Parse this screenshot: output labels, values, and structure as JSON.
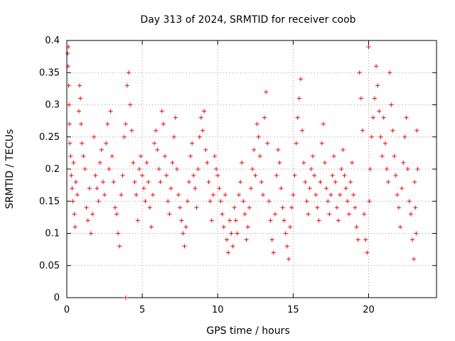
{
  "chart_data": {
    "type": "scatter",
    "title": "Day 313 of 2024, SRMTID for receiver coob",
    "xlabel": "GPS time / hours",
    "ylabel": "SRMTID / TECUs",
    "xlim": [
      0,
      24.5
    ],
    "ylim": [
      0,
      0.4
    ],
    "xticks": [
      0,
      5,
      10,
      15,
      20
    ],
    "xtick_labels": [
      "0",
      "5",
      "10",
      "15",
      "20"
    ],
    "yticks": [
      0,
      0.05,
      0.1,
      0.15,
      0.2,
      0.25,
      0.3,
      0.35,
      0.4
    ],
    "ytick_labels": [
      "0",
      "0.05",
      "0.1",
      "0.15",
      "0.2",
      "0.25",
      "0.3",
      "0.35",
      "0.4"
    ],
    "grid": true,
    "marker": "plus",
    "series": [
      {
        "name": "SRMTID",
        "color": "#ff0000",
        "points": [
          [
            0.05,
            0.38
          ],
          [
            0.08,
            0.36
          ],
          [
            0.1,
            0.39
          ],
          [
            0.12,
            0.33
          ],
          [
            0.15,
            0.3
          ],
          [
            0.18,
            0.27
          ],
          [
            0.2,
            0.24
          ],
          [
            0.25,
            0.22
          ],
          [
            0.3,
            0.19
          ],
          [
            0.35,
            0.17
          ],
          [
            0.4,
            0.15
          ],
          [
            0.45,
            0.21
          ],
          [
            0.5,
            0.13
          ],
          [
            0.55,
            0.11
          ],
          [
            0.6,
            0.18
          ],
          [
            0.7,
            0.16
          ],
          [
            0.8,
            0.29
          ],
          [
            0.85,
            0.33
          ],
          [
            0.9,
            0.31
          ],
          [
            0.95,
            0.27
          ],
          [
            1.0,
            0.24
          ],
          [
            1.1,
            0.22
          ],
          [
            1.2,
            0.2
          ],
          [
            1.3,
            0.14
          ],
          [
            1.4,
            0.12
          ],
          [
            1.5,
            0.17
          ],
          [
            1.6,
            0.1
          ],
          [
            1.7,
            0.13
          ],
          [
            1.8,
            0.25
          ],
          [
            1.9,
            0.19
          ],
          [
            2.0,
            0.17
          ],
          [
            2.1,
            0.15
          ],
          [
            2.2,
            0.21
          ],
          [
            2.3,
            0.23
          ],
          [
            2.4,
            0.18
          ],
          [
            2.5,
            0.16
          ],
          [
            2.6,
            0.24
          ],
          [
            2.7,
            0.27
          ],
          [
            2.8,
            0.2
          ],
          [
            2.9,
            0.29
          ],
          [
            3.0,
            0.22
          ],
          [
            3.1,
            0.18
          ],
          [
            3.2,
            0.14
          ],
          [
            3.3,
            0.13
          ],
          [
            3.4,
            0.1
          ],
          [
            3.5,
            0.08
          ],
          [
            3.6,
            0.16
          ],
          [
            3.7,
            0.19
          ],
          [
            3.8,
            0.25
          ],
          [
            3.9,
            0.27
          ],
          [
            4.0,
            0.33
          ],
          [
            4.1,
            0.35
          ],
          [
            4.2,
            0.3
          ],
          [
            4.3,
            0.26
          ],
          [
            4.4,
            0.21
          ],
          [
            4.5,
            0.18
          ],
          [
            4.6,
            0.16
          ],
          [
            4.7,
            0.12
          ],
          [
            4.8,
            0.2
          ],
          [
            4.9,
            0.22
          ],
          [
            5.0,
            0.19
          ],
          [
            5.1,
            0.17
          ],
          [
            5.2,
            0.15
          ],
          [
            5.3,
            0.21
          ],
          [
            5.4,
            0.18
          ],
          [
            5.5,
            0.14
          ],
          [
            5.6,
            0.11
          ],
          [
            5.7,
            0.16
          ],
          [
            5.8,
            0.24
          ],
          [
            5.9,
            0.26
          ],
          [
            6.0,
            0.23
          ],
          [
            6.1,
            0.2
          ],
          [
            6.2,
            0.18
          ],
          [
            6.3,
            0.29
          ],
          [
            6.4,
            0.27
          ],
          [
            6.5,
            0.22
          ],
          [
            6.6,
            0.19
          ],
          [
            6.7,
            0.15
          ],
          [
            6.8,
            0.13
          ],
          [
            6.9,
            0.17
          ],
          [
            7.0,
            0.21
          ],
          [
            7.1,
            0.25
          ],
          [
            7.2,
            0.28
          ],
          [
            7.3,
            0.2
          ],
          [
            7.4,
            0.16
          ],
          [
            7.5,
            0.14
          ],
          [
            7.6,
            0.12
          ],
          [
            7.7,
            0.1
          ],
          [
            7.8,
            0.08
          ],
          [
            7.9,
            0.11
          ],
          [
            8.0,
            0.15
          ],
          [
            8.1,
            0.18
          ],
          [
            8.2,
            0.22
          ],
          [
            8.3,
            0.24
          ],
          [
            8.4,
            0.19
          ],
          [
            8.5,
            0.17
          ],
          [
            8.6,
            0.14
          ],
          [
            8.7,
            0.2
          ],
          [
            8.8,
            0.25
          ],
          [
            8.9,
            0.28
          ],
          [
            9.0,
            0.26
          ],
          [
            9.1,
            0.29
          ],
          [
            9.2,
            0.23
          ],
          [
            9.3,
            0.21
          ],
          [
            9.4,
            0.18
          ],
          [
            9.5,
            0.15
          ],
          [
            9.6,
            0.12
          ],
          [
            9.7,
            0.16
          ],
          [
            9.8,
            0.22
          ],
          [
            9.9,
            0.2
          ],
          [
            10.0,
            0.19
          ],
          [
            10.1,
            0.17
          ],
          [
            10.2,
            0.15
          ],
          [
            10.3,
            0.13
          ],
          [
            10.4,
            0.11
          ],
          [
            10.5,
            0.16
          ],
          [
            10.6,
            0.09
          ],
          [
            10.7,
            0.07
          ],
          [
            10.8,
            0.12
          ],
          [
            10.9,
            0.1
          ],
          [
            11.0,
            0.08
          ],
          [
            11.1,
            0.14
          ],
          [
            11.2,
            0.12
          ],
          [
            11.3,
            0.1
          ],
          [
            11.4,
            0.16
          ],
          [
            11.5,
            0.18
          ],
          [
            11.6,
            0.21
          ],
          [
            11.7,
            0.15
          ],
          [
            11.8,
            0.13
          ],
          [
            11.9,
            0.09
          ],
          [
            12.0,
            0.11
          ],
          [
            12.1,
            0.14
          ],
          [
            12.2,
            0.17
          ],
          [
            12.3,
            0.2
          ],
          [
            12.4,
            0.23
          ],
          [
            12.5,
            0.19
          ],
          [
            12.6,
            0.27
          ],
          [
            12.7,
            0.25
          ],
          [
            12.8,
            0.22
          ],
          [
            12.9,
            0.18
          ],
          [
            13.0,
            0.16
          ],
          [
            13.1,
            0.28
          ],
          [
            13.2,
            0.32
          ],
          [
            13.3,
            0.24
          ],
          [
            13.4,
            0.15
          ],
          [
            13.5,
            0.12
          ],
          [
            13.6,
            0.09
          ],
          [
            13.7,
            0.07
          ],
          [
            13.8,
            0.13
          ],
          [
            13.9,
            0.19
          ],
          [
            14.0,
            0.23
          ],
          [
            14.1,
            0.21
          ],
          [
            14.2,
            0.17
          ],
          [
            14.3,
            0.14
          ],
          [
            14.4,
            0.12
          ],
          [
            14.5,
            0.1
          ],
          [
            14.6,
            0.08
          ],
          [
            14.7,
            0.06
          ],
          [
            14.8,
            0.11
          ],
          [
            14.9,
            0.14
          ],
          [
            15.0,
            0.16
          ],
          [
            15.1,
            0.19
          ],
          [
            15.2,
            0.24
          ],
          [
            15.3,
            0.28
          ],
          [
            15.4,
            0.31
          ],
          [
            15.5,
            0.34
          ],
          [
            15.6,
            0.26
          ],
          [
            15.7,
            0.21
          ],
          [
            15.8,
            0.18
          ],
          [
            15.9,
            0.15
          ],
          [
            16.0,
            0.13
          ],
          [
            16.1,
            0.17
          ],
          [
            16.2,
            0.2
          ],
          [
            16.3,
            0.22
          ],
          [
            16.4,
            0.19
          ],
          [
            16.5,
            0.16
          ],
          [
            16.6,
            0.14
          ],
          [
            16.7,
            0.12
          ],
          [
            16.8,
            0.18
          ],
          [
            16.9,
            0.24
          ],
          [
            17.0,
            0.27
          ],
          [
            17.1,
            0.21
          ],
          [
            17.2,
            0.17
          ],
          [
            17.3,
            0.15
          ],
          [
            17.4,
            0.13
          ],
          [
            17.5,
            0.16
          ],
          [
            17.6,
            0.19
          ],
          [
            17.7,
            0.22
          ],
          [
            17.8,
            0.18
          ],
          [
            17.9,
            0.14
          ],
          [
            18.0,
            0.12
          ],
          [
            18.1,
            0.16
          ],
          [
            18.2,
            0.2
          ],
          [
            18.3,
            0.23
          ],
          [
            18.4,
            0.19
          ],
          [
            18.5,
            0.17
          ],
          [
            18.6,
            0.15
          ],
          [
            18.7,
            0.13
          ],
          [
            18.8,
            0.18
          ],
          [
            18.9,
            0.21
          ],
          [
            19.0,
            0.16
          ],
          [
            19.1,
            0.14
          ],
          [
            19.2,
            0.11
          ],
          [
            19.3,
            0.09
          ],
          [
            19.4,
            0.35
          ],
          [
            19.5,
            0.31
          ],
          [
            19.6,
            0.26
          ],
          [
            19.7,
            0.13
          ],
          [
            19.8,
            0.09
          ],
          [
            19.9,
            0.07
          ],
          [
            20.0,
            0.39
          ],
          [
            20.05,
            0.15
          ],
          [
            20.1,
            0.2
          ],
          [
            20.2,
            0.25
          ],
          [
            20.3,
            0.28
          ],
          [
            20.4,
            0.31
          ],
          [
            20.5,
            0.36
          ],
          [
            20.6,
            0.33
          ],
          [
            20.7,
            0.29
          ],
          [
            20.8,
            0.25
          ],
          [
            20.9,
            0.22
          ],
          [
            21.0,
            0.28
          ],
          [
            21.1,
            0.24
          ],
          [
            21.2,
            0.2
          ],
          [
            21.3,
            0.18
          ],
          [
            21.4,
            0.35
          ],
          [
            21.5,
            0.3
          ],
          [
            21.6,
            0.26
          ],
          [
            21.7,
            0.22
          ],
          [
            21.8,
            0.19
          ],
          [
            21.9,
            0.16
          ],
          [
            22.0,
            0.14
          ],
          [
            22.1,
            0.11
          ],
          [
            22.2,
            0.17
          ],
          [
            22.3,
            0.21
          ],
          [
            22.4,
            0.25
          ],
          [
            22.5,
            0.28
          ],
          [
            22.6,
            0.2
          ],
          [
            22.7,
            0.15
          ],
          [
            22.8,
            0.13
          ],
          [
            22.9,
            0.09
          ],
          [
            23.0,
            0.06
          ],
          [
            23.05,
            0.18
          ],
          [
            23.1,
            0.14
          ],
          [
            23.15,
            0.1
          ],
          [
            23.2,
            0.26
          ],
          [
            23.25,
            0.2
          ]
        ]
      },
      {
        "name": "zero-marker",
        "color": "#ff0000",
        "points": [
          [
            3.9,
            0.0
          ]
        ]
      }
    ]
  }
}
